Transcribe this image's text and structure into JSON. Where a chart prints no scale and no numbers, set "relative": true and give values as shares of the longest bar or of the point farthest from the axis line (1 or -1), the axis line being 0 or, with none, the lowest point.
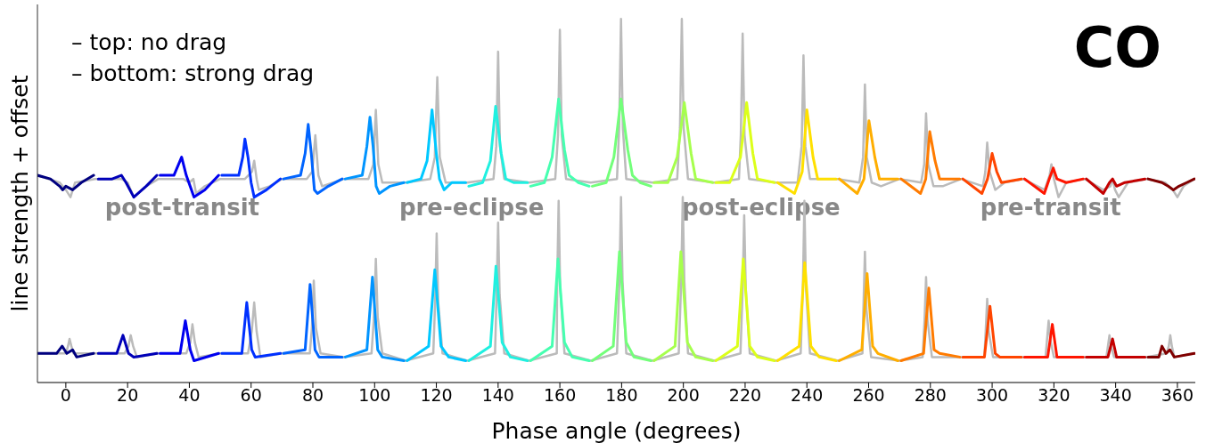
{
  "chart_data": {
    "type": "line",
    "title": "CO",
    "xlabel": "Phase angle (degrees)",
    "ylabel": "line strength + offset",
    "relative": true,
    "grid": false,
    "marker": "none",
    "line_style": "solid",
    "xlim": [
      -9.2,
      365.8
    ],
    "xticks": [
      0,
      20,
      40,
      60,
      80,
      100,
      120,
      140,
      160,
      180,
      200,
      220,
      240,
      260,
      280,
      300,
      320,
      340,
      360
    ],
    "annotations": [
      "– top: no drag",
      "– bottom: strong drag",
      "post-transit",
      "pre-eclipse",
      "post-eclipse",
      "pre-transit"
    ],
    "series": [
      {
        "color": "#bbbbbb",
        "x": [
          -9.2,
          -2,
          0,
          1.5,
          3,
          9.5,
          18,
          20,
          22,
          26,
          30,
          38,
          40,
          41.3,
          42.2,
          45,
          50,
          58,
          60.3,
          61,
          61.8,
          62.5,
          66,
          70,
          78,
          79.8,
          80.8,
          81.8,
          83,
          90,
          98,
          99.6,
          100.4,
          101.2,
          102.5,
          110,
          118,
          119.5,
          120.3,
          121.1,
          123,
          130,
          138.5,
          139.4,
          140,
          140.6,
          142,
          150,
          158.5,
          159.4,
          160,
          160.6,
          162,
          170,
          178.5,
          179.2,
          179.8,
          180.4,
          181.5,
          190,
          198,
          198.9,
          199.5,
          200.1,
          201.5,
          210,
          218,
          218.6,
          219.2,
          219.8,
          221.3,
          230,
          237,
          238.3,
          238.9,
          239.5,
          241,
          250,
          257,
          258.2,
          258.8,
          259.4,
          261,
          264,
          270,
          277,
          278,
          278.6,
          279.3,
          281,
          284,
          290,
          297,
          297.8,
          298.4,
          299.2,
          301,
          304,
          310,
          317,
          318.6,
          319.2,
          320,
          321.5,
          324,
          330,
          336,
          338.3,
          339,
          339.8,
          341,
          344,
          350,
          356,
          358.5,
          360,
          362,
          365.5,
          180,
          -9.2,
          0,
          0.7,
          1.2,
          1.8,
          2.5,
          10,
          19,
          20.3,
          21,
          21.8,
          23,
          30,
          39,
          40.3,
          41,
          41.8,
          43,
          50,
          59,
          60.2,
          61,
          61.8,
          63,
          70,
          79,
          79.7,
          80.3,
          81,
          82.5,
          90,
          99,
          99.8,
          100.4,
          101,
          102.5,
          110,
          119,
          119.6,
          120.1,
          120.6,
          122,
          130,
          139,
          139.5,
          140,
          140.5,
          142,
          150,
          159,
          159.1,
          159.6,
          160.1,
          161.5,
          170,
          178.5,
          179.3,
          179.8,
          180.3,
          181.5,
          190,
          198.5,
          199.3,
          199.8,
          200.3,
          201.5,
          210,
          218.5,
          219.2,
          219.7,
          220.2,
          221.5,
          230,
          238,
          238.7,
          239.2,
          239.7,
          241,
          250,
          258,
          258.3,
          258.8,
          259.3,
          260.8,
          270,
          277.5,
          278.1,
          278.6,
          279.1,
          280.5,
          290,
          297.5,
          297.9,
          298.4,
          298.9,
          300.3,
          310,
          317.3,
          317.8,
          318.3,
          318.8,
          320,
          330,
          337,
          337.5,
          338,
          338.5,
          339.5,
          350,
          356.5,
          357.2,
          357.7,
          358.2,
          359,
          365.5
        ],
        "values": [
          0.57,
          0.55,
          0.53,
          0.51,
          0.55,
          0.56,
          0.56,
          0.55,
          0.51,
          0.54,
          0.56,
          0.56,
          0.55,
          0.56,
          0.52,
          0.54,
          0.56,
          0.56,
          0.58,
          0.61,
          0.56,
          0.53,
          0.54,
          0.56,
          0.56,
          0.58,
          0.68,
          0.57,
          0.54,
          0.56,
          0.56,
          0.6,
          0.75,
          0.6,
          0.55,
          0.55,
          0.56,
          0.62,
          0.84,
          0.62,
          0.55,
          0.55,
          0.56,
          0.65,
          0.91,
          0.65,
          0.56,
          0.55,
          0.56,
          0.68,
          0.97,
          0.68,
          0.56,
          0.55,
          0.56,
          0.7,
          1.0,
          0.7,
          0.56,
          0.55,
          0.56,
          0.7,
          1.0,
          0.7,
          0.56,
          0.55,
          0.56,
          0.68,
          0.96,
          0.68,
          0.56,
          0.55,
          0.55,
          0.65,
          0.9,
          0.65,
          0.56,
          0.56,
          0.55,
          0.62,
          0.82,
          0.62,
          0.55,
          0.54,
          0.56,
          0.55,
          0.6,
          0.74,
          0.6,
          0.54,
          0.54,
          0.56,
          0.54,
          0.58,
          0.66,
          0.58,
          0.53,
          0.55,
          0.56,
          0.53,
          0.57,
          0.6,
          0.56,
          0.51,
          0.55,
          0.56,
          0.53,
          0.54,
          0.56,
          0.53,
          0.51,
          0.55,
          0.56,
          0.55,
          0.53,
          0.51,
          0.54,
          0.56,
          null,
          0.08,
          0.08,
          0.1,
          0.12,
          0.1,
          0.08,
          0.08,
          0.08,
          0.1,
          0.13,
          0.1,
          0.07,
          0.08,
          0.08,
          0.11,
          0.16,
          0.11,
          0.07,
          0.08,
          0.08,
          0.14,
          0.22,
          0.14,
          0.07,
          0.08,
          0.08,
          0.15,
          0.28,
          0.15,
          0.08,
          0.07,
          0.08,
          0.18,
          0.34,
          0.18,
          0.08,
          0.06,
          0.08,
          0.22,
          0.41,
          0.22,
          0.08,
          0.06,
          0.08,
          0.24,
          0.44,
          0.24,
          0.08,
          0.06,
          0.08,
          0.26,
          0.5,
          0.26,
          0.08,
          0.06,
          0.08,
          0.28,
          0.51,
          0.28,
          0.08,
          0.06,
          0.08,
          0.28,
          0.51,
          0.28,
          0.08,
          0.06,
          0.08,
          0.26,
          0.46,
          0.26,
          0.08,
          0.06,
          0.08,
          0.26,
          0.5,
          0.26,
          0.08,
          0.06,
          0.08,
          0.2,
          0.36,
          0.2,
          0.07,
          0.06,
          0.07,
          0.17,
          0.29,
          0.17,
          0.07,
          0.07,
          0.07,
          0.14,
          0.23,
          0.14,
          0.07,
          0.07,
          0.07,
          0.12,
          0.17,
          0.12,
          0.07,
          0.07,
          0.07,
          0.1,
          0.13,
          0.1,
          0.07,
          0.07,
          0.08,
          0.1,
          0.13,
          0.1,
          0.07,
          0.08
        ]
      },
      {
        "color": "#00007f",
        "x": [
          -9.2,
          -5,
          -2,
          -1,
          0,
          2.2,
          5,
          9,
          0,
          -9.2,
          -3,
          -1.2,
          0.3,
          2.2,
          3.5,
          9
        ],
        "values": [
          0.57,
          0.56,
          0.54,
          0.53,
          0.54,
          0.53,
          0.55,
          0.57,
          null,
          0.08,
          0.08,
          0.1,
          0.08,
          0.09,
          0.07,
          0.08
        ]
      },
      {
        "color": "#0000b8",
        "x": [
          10.5,
          15,
          18,
          19.5,
          22,
          26,
          29.5,
          20,
          10.5,
          16.5,
          18.5,
          20.3,
          22,
          29.5
        ],
        "values": [
          0.56,
          0.56,
          0.57,
          0.55,
          0.51,
          0.54,
          0.57,
          null,
          0.08,
          0.08,
          0.13,
          0.08,
          0.07,
          0.08
        ]
      },
      {
        "color": "#0000f0",
        "x": [
          30.5,
          35,
          37.5,
          39,
          41.5,
          45,
          49.5,
          40,
          30.5,
          37,
          38.7,
          40.3,
          41.5,
          49.5
        ],
        "values": [
          0.57,
          0.57,
          0.62,
          0.57,
          0.51,
          0.53,
          0.57,
          null,
          0.08,
          0.08,
          0.17,
          0.09,
          0.06,
          0.08
        ]
      },
      {
        "color": "#0030ff",
        "x": [
          50.5,
          56,
          57.3,
          58,
          59,
          60,
          61,
          65,
          69.5,
          60,
          50.5,
          57,
          58.6,
          60.2,
          61.3,
          69.5
        ],
        "values": [
          0.57,
          0.57,
          0.62,
          0.67,
          0.62,
          0.55,
          0.51,
          0.53,
          0.56,
          null,
          0.08,
          0.08,
          0.22,
          0.09,
          0.07,
          0.08
        ]
      },
      {
        "color": "#0064ff",
        "x": [
          70.5,
          76,
          77.5,
          78.5,
          79.5,
          80.5,
          81.5,
          85,
          89.5,
          80,
          70.5,
          77.5,
          79.1,
          80.7,
          82,
          89.5
        ],
        "values": [
          0.56,
          0.57,
          0.63,
          0.71,
          0.63,
          0.53,
          0.52,
          0.54,
          0.56,
          null,
          0.08,
          0.09,
          0.27,
          0.09,
          0.07,
          0.07
        ]
      },
      {
        "color": "#0094ff",
        "x": [
          90.5,
          96,
          97.5,
          98.5,
          99.5,
          100.5,
          101.5,
          105,
          109.5,
          100,
          90.5,
          97.5,
          99.3,
          101,
          102.5,
          109.5
        ],
        "values": [
          0.56,
          0.57,
          0.65,
          0.73,
          0.65,
          0.54,
          0.52,
          0.54,
          0.55,
          null,
          0.07,
          0.09,
          0.29,
          0.09,
          0.07,
          0.06
        ]
      },
      {
        "color": "#00c8ff",
        "x": [
          110.5,
          115,
          117,
          118.6,
          120,
          121,
          122.5,
          125,
          129.5,
          120,
          110.5,
          117.5,
          119.5,
          121.5,
          124,
          129.5
        ],
        "values": [
          0.55,
          0.56,
          0.61,
          0.75,
          0.63,
          0.56,
          0.53,
          0.55,
          0.55,
          null,
          0.06,
          0.1,
          0.31,
          0.1,
          0.07,
          0.06
        ]
      },
      {
        "color": "#1ff0e0",
        "x": [
          130.5,
          135,
          137.5,
          139.2,
          141,
          142.5,
          145,
          149.5,
          140,
          130.5,
          137.5,
          139.3,
          141.3,
          144,
          149.5
        ],
        "values": [
          0.54,
          0.55,
          0.61,
          0.76,
          0.63,
          0.56,
          0.55,
          0.55,
          null,
          0.06,
          0.1,
          0.32,
          0.11,
          0.07,
          0.06
        ]
      },
      {
        "color": "#46ffb0",
        "x": [
          150.5,
          155,
          157.5,
          159.6,
          161.5,
          163,
          166,
          169.5,
          160,
          150.5,
          157.5,
          159.4,
          161.5,
          164,
          169.5
        ],
        "values": [
          0.54,
          0.55,
          0.62,
          0.78,
          0.64,
          0.57,
          0.55,
          0.54,
          null,
          0.06,
          0.1,
          0.34,
          0.11,
          0.07,
          0.06
        ]
      },
      {
        "color": "#73ff7a",
        "x": [
          170.5,
          175,
          177.5,
          179.8,
          182,
          183.5,
          186,
          189.5,
          180,
          170.5,
          177.3,
          179.3,
          181.5,
          184,
          189.5
        ],
        "values": [
          0.54,
          0.55,
          0.62,
          0.78,
          0.64,
          0.57,
          0.55,
          0.54,
          null,
          0.06,
          0.1,
          0.36,
          0.11,
          0.07,
          0.06
        ]
      },
      {
        "color": "#a6ff4d",
        "x": [
          190.5,
          195,
          198,
          200.3,
          202.5,
          204,
          209.5,
          200,
          190.5,
          197.3,
          199.2,
          201.3,
          204,
          209.5
        ],
        "values": [
          0.55,
          0.55,
          0.62,
          0.77,
          0.63,
          0.56,
          0.55,
          null,
          0.06,
          0.1,
          0.36,
          0.11,
          0.07,
          0.06
        ]
      },
      {
        "color": "#dcff1a",
        "x": [
          210.5,
          215,
          218.5,
          220.5,
          222.5,
          224,
          229.5,
          220,
          210.5,
          217.5,
          219.4,
          221.5,
          224,
          229.5
        ],
        "values": [
          0.55,
          0.55,
          0.62,
          0.77,
          0.63,
          0.56,
          0.55,
          null,
          0.06,
          0.1,
          0.34,
          0.1,
          0.07,
          0.06
        ]
      },
      {
        "color": "#ffe000",
        "x": [
          230.5,
          236,
          238.5,
          240,
          242,
          243.5,
          249.5,
          240,
          230.5,
          237.5,
          239.3,
          241.3,
          244,
          249.5
        ],
        "values": [
          0.55,
          0.52,
          0.58,
          0.75,
          0.62,
          0.56,
          0.56,
          null,
          0.06,
          0.1,
          0.33,
          0.1,
          0.07,
          0.06
        ]
      },
      {
        "color": "#ffae00",
        "x": [
          250.5,
          256.3,
          258.5,
          260.1,
          262,
          263.5,
          269.5,
          260,
          250.5,
          257.8,
          259.5,
          261.3,
          263,
          269.5
        ],
        "values": [
          0.56,
          0.52,
          0.56,
          0.72,
          0.62,
          0.56,
          0.56,
          null,
          0.06,
          0.09,
          0.3,
          0.1,
          0.08,
          0.06
        ]
      },
      {
        "color": "#ff7b00",
        "x": [
          270.5,
          276.8,
          278.5,
          279.8,
          281.5,
          283,
          289.5,
          280,
          270.5,
          277.8,
          279.5,
          281.2,
          283,
          289.5
        ],
        "values": [
          0.56,
          0.52,
          0.56,
          0.69,
          0.61,
          0.56,
          0.56,
          null,
          0.06,
          0.08,
          0.26,
          0.09,
          0.08,
          0.07
        ]
      },
      {
        "color": "#ff4500",
        "x": [
          290.5,
          296.7,
          298.5,
          300,
          301.5,
          303,
          309.5,
          300,
          290.5,
          297.5,
          299.3,
          301,
          302.5,
          309.5
        ],
        "values": [
          0.56,
          0.52,
          0.56,
          0.63,
          0.58,
          0.55,
          0.56,
          null,
          0.07,
          0.07,
          0.21,
          0.08,
          0.07,
          0.07
        ]
      },
      {
        "color": "#ff1500",
        "x": [
          310.5,
          316.9,
          318.5,
          319.8,
          321,
          324,
          329.5,
          320,
          310.5,
          318,
          319.5,
          321,
          329.5
        ],
        "values": [
          0.56,
          0.52,
          0.56,
          0.59,
          0.56,
          0.55,
          0.56,
          null,
          0.07,
          0.07,
          0.16,
          0.07,
          0.07
        ]
      },
      {
        "color": "#c40000",
        "x": [
          330.5,
          336,
          338,
          339,
          340.3,
          343,
          349.5,
          340,
          330.5,
          337.5,
          339,
          340.3,
          349.5
        ],
        "values": [
          0.56,
          0.52,
          0.55,
          0.56,
          0.54,
          0.55,
          0.56,
          null,
          0.07,
          0.07,
          0.12,
          0.07,
          0.07
        ]
      },
      {
        "color": "#800000",
        "x": [
          350.5,
          355,
          357,
          358.7,
          360.5,
          363,
          365.5,
          360,
          350.5,
          354,
          355,
          356.3,
          357.6,
          359,
          365.5
        ],
        "values": [
          0.56,
          0.55,
          0.54,
          0.53,
          0.54,
          0.55,
          0.56,
          null,
          0.07,
          0.07,
          0.1,
          0.08,
          0.09,
          0.07,
          0.08
        ]
      }
    ]
  }
}
